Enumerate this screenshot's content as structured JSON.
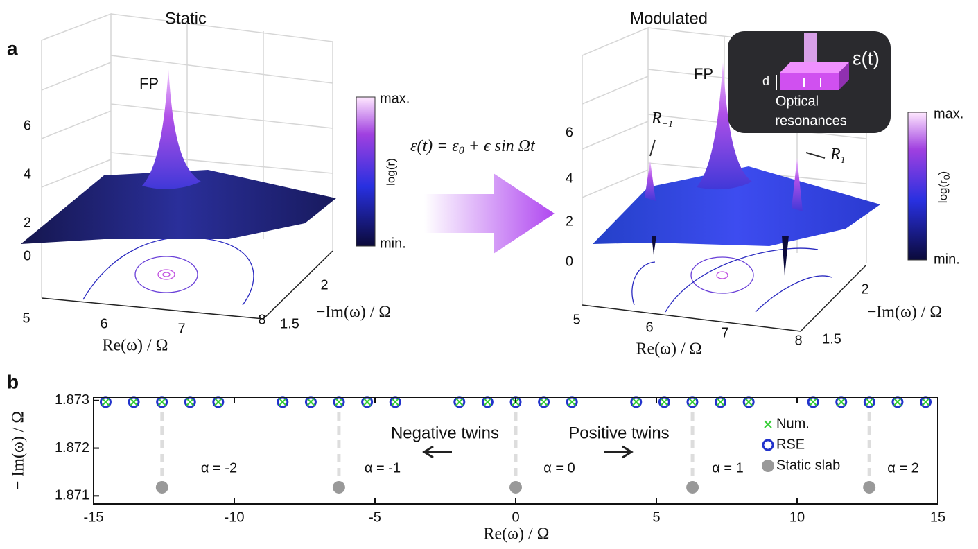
{
  "panel_a": {
    "label": "a",
    "static": {
      "title": "Static",
      "peak_label": "FP",
      "z_ticks": [
        "6",
        "4",
        "2",
        "0"
      ],
      "re_ticks": [
        "5",
        "6",
        "7",
        "8"
      ],
      "im_ticks": [
        "2",
        "1.5"
      ],
      "re_label": "Re(ω) / Ω",
      "im_label": "−Im(ω) / Ω",
      "colorbar": {
        "max": "max.",
        "min": "min.",
        "label": "log(r)"
      }
    },
    "equation": {
      "lhs": "ε(t) = ε",
      "sub": "0",
      "rhs": " + ϵ sin Ωt"
    },
    "modulated": {
      "title": "Modulated",
      "peak_label": "FP",
      "r_minus": {
        "main": "R",
        "sub": "−1"
      },
      "r_plus": {
        "main": "R",
        "sub": "1"
      },
      "z_ticks": [
        "6",
        "4",
        "2",
        "0"
      ],
      "re_ticks": [
        "5",
        "6",
        "7",
        "8"
      ],
      "im_ticks": [
        "2",
        "1.5"
      ],
      "re_label": "Re(ω) / Ω",
      "im_label": "−Im(ω) / Ω",
      "colorbar": {
        "max": "max.",
        "min": "min.",
        "label_main": "log(r",
        "label_sub": "0",
        "label_end": ")"
      },
      "inset": {
        "eps": "ε(t)",
        "d": "d",
        "text1": "Optical",
        "text2": "resonances"
      }
    }
  },
  "panel_b_label": "b",
  "annotations": {
    "neg": "Negative twins",
    "pos": "Positive twins",
    "a_m2": "α = -2",
    "a_m1": "α = -1",
    "a_0": "α = 0",
    "a_1": "α = 1",
    "a_2": "α = 2"
  },
  "chart_data": {
    "type": "scatter",
    "x_label": "Re(ω) / Ω",
    "y_label": "− Im(ω) / Ω",
    "xlim": [
      -15,
      15
    ],
    "xticks": [
      -15,
      -10,
      -5,
      0,
      5,
      10,
      15
    ],
    "ylim": [
      1.87083,
      1.87307
    ],
    "yticks": [
      1.871,
      1.872,
      1.873
    ],
    "legend": "right",
    "series": [
      {
        "name": "Num.",
        "color": "#33cc33",
        "marker": "x",
        "x": [
          -14.57,
          -13.57,
          -12.57,
          -11.57,
          -10.57,
          -8.28,
          -7.28,
          -6.28,
          -5.28,
          -4.28,
          -2,
          -1,
          0,
          1,
          2,
          4.28,
          5.28,
          6.28,
          7.28,
          8.28,
          10.57,
          11.57,
          12.57,
          13.57,
          14.57
        ],
        "values": [
          1.87297,
          1.87297,
          1.87297,
          1.87297,
          1.87297,
          1.87297,
          1.87297,
          1.87297,
          1.87297,
          1.87297,
          1.87297,
          1.87297,
          1.87297,
          1.87297,
          1.87297,
          1.87297,
          1.87297,
          1.87297,
          1.87297,
          1.87297,
          1.87297,
          1.87297,
          1.87297,
          1.87297,
          1.87297
        ]
      },
      {
        "name": "RSE",
        "color": "#2233cc",
        "marker": "circle-open",
        "x": [
          -14.57,
          -13.57,
          -12.57,
          -11.57,
          -10.57,
          -8.28,
          -7.28,
          -6.28,
          -5.28,
          -4.28,
          -2,
          -1,
          0,
          1,
          2,
          4.28,
          5.28,
          6.28,
          7.28,
          8.28,
          10.57,
          11.57,
          12.57,
          13.57,
          14.57
        ],
        "values": [
          1.87297,
          1.87297,
          1.87297,
          1.87297,
          1.87297,
          1.87297,
          1.87297,
          1.87297,
          1.87297,
          1.87297,
          1.87297,
          1.87297,
          1.87297,
          1.87297,
          1.87297,
          1.87297,
          1.87297,
          1.87297,
          1.87297,
          1.87297,
          1.87297,
          1.87297,
          1.87297,
          1.87297,
          1.87297
        ]
      },
      {
        "name": "Static slab",
        "color": "#999999",
        "marker": "circle",
        "x": [
          -12.566,
          -6.283,
          0,
          6.283,
          12.566
        ],
        "values": [
          1.87118,
          1.87118,
          1.87118,
          1.87118,
          1.87118
        ]
      }
    ]
  }
}
